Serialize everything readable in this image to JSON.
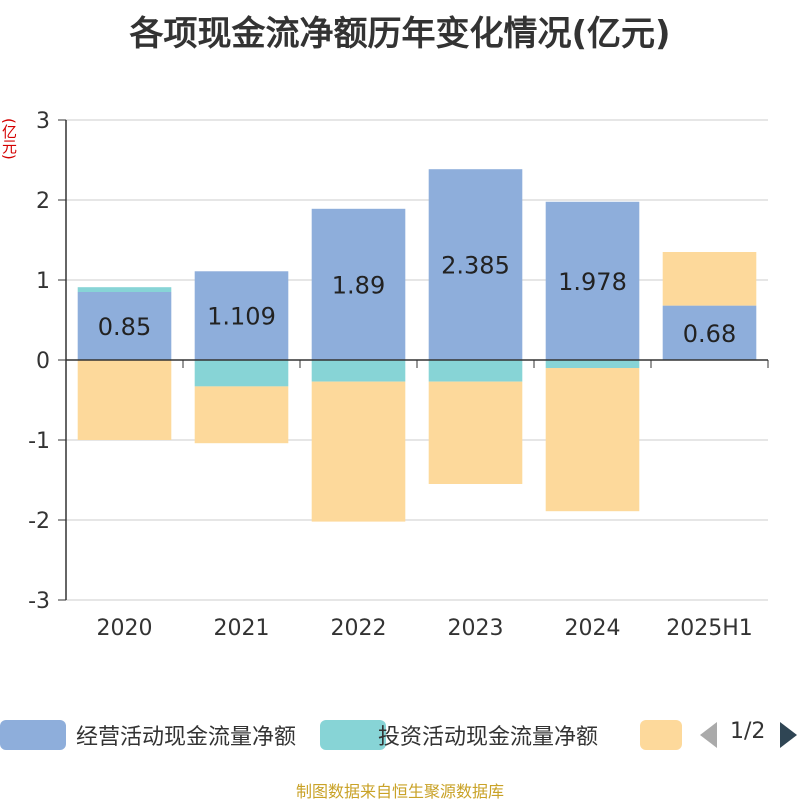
{
  "title": "各项现金流净额历年变化情况(亿元)",
  "unit_label": "(亿元)",
  "source": "制图数据来自恒生聚源数据库",
  "pager": {
    "text": "1/2"
  },
  "colors": {
    "operating": "#8eaedb",
    "investing": "#87d4d6",
    "financing": "#fdd99b",
    "axis": "#333333",
    "grid": "#cccccc"
  },
  "legend": [
    {
      "label": "经营活动现金流量净额",
      "color": "#8eaedb"
    },
    {
      "label": "投资活动现金流量净额",
      "color": "#87d4d6"
    },
    {
      "label": "",
      "color": "#fdd99b"
    }
  ],
  "chart_data": {
    "type": "bar",
    "stacked": true,
    "categories": [
      "2020",
      "2021",
      "2022",
      "2023",
      "2024",
      "2025H1"
    ],
    "ylim": [
      -3,
      3
    ],
    "yticks": [
      3,
      2,
      1,
      0,
      -1,
      -2,
      -3
    ],
    "grid": true,
    "legend_position": "bottom",
    "series": [
      {
        "name": "经营活动现金流量净额",
        "values": [
          0.85,
          1.109,
          1.89,
          2.385,
          1.978,
          0.68
        ],
        "labels": [
          "0.85",
          "1.109",
          "1.89",
          "2.385",
          "1.978",
          "0.68"
        ],
        "color": "#8eaedb"
      },
      {
        "name": "投资活动现金流量净额",
        "values": [
          0.06,
          -0.33,
          -0.27,
          -0.27,
          -0.1,
          0.0
        ],
        "color": "#87d4d6"
      },
      {
        "values": [
          -1.0,
          -0.71,
          -1.75,
          -1.28,
          -1.79,
          0.67
        ],
        "color": "#fdd99b"
      }
    ]
  }
}
